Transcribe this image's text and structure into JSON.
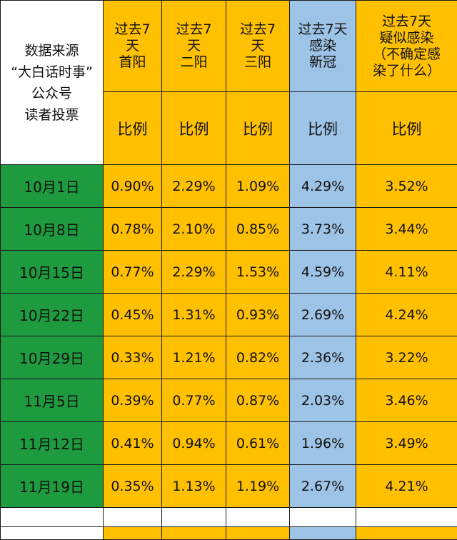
{
  "source_label": [
    "数据来源",
    "“大白话时事”",
    "公众号",
    "读者投票"
  ],
  "columns": [
    {
      "header": [
        "过去7",
        "天",
        "首阳"
      ],
      "sub": "比例",
      "color": "#ffc000"
    },
    {
      "header": [
        "过去7",
        "天",
        "二阳"
      ],
      "sub": "比例",
      "color": "#ffc000"
    },
    {
      "header": [
        "过去7",
        "天",
        "三阳"
      ],
      "sub": "比例",
      "color": "#ffc000"
    },
    {
      "header": [
        "过去7天",
        "感染",
        "新冠"
      ],
      "sub": "比例",
      "color": "#9dc3e6"
    },
    {
      "header": [
        "过去7天",
        "疑似感染",
        "（不确定感",
        "染了什么）"
      ],
      "sub": "比例",
      "color": "#ffc000"
    }
  ],
  "rows": [
    {
      "date": "10月1日",
      "values": [
        "0.90%",
        "2.29%",
        "1.09%",
        "4.29%",
        "3.52%"
      ]
    },
    {
      "date": "10月8日",
      "values": [
        "0.78%",
        "2.10%",
        "0.85%",
        "3.73%",
        "3.44%"
      ]
    },
    {
      "date": "10月15日",
      "values": [
        "0.77%",
        "2.29%",
        "1.53%",
        "4.59%",
        "4.11%"
      ]
    },
    {
      "date": "10月22日",
      "values": [
        "0.45%",
        "1.31%",
        "0.93%",
        "2.69%",
        "4.24%"
      ]
    },
    {
      "date": "10月29日",
      "values": [
        "0.33%",
        "1.21%",
        "0.82%",
        "2.36%",
        "3.22%"
      ]
    },
    {
      "date": "11月5日",
      "values": [
        "0.39%",
        "0.77%",
        "0.87%",
        "2.03%",
        "3.46%"
      ]
    },
    {
      "date": "11月12日",
      "values": [
        "0.41%",
        "0.94%",
        "0.61%",
        "1.96%",
        "3.49%"
      ]
    },
    {
      "date": "11月19日",
      "values": [
        "0.35%",
        "1.13%",
        "1.19%",
        "2.67%",
        "4.21%"
      ]
    }
  ],
  "colors": {
    "header": "#ffc000",
    "highlight_column": "#9dc3e6",
    "date_column": "#1e9a3f"
  }
}
